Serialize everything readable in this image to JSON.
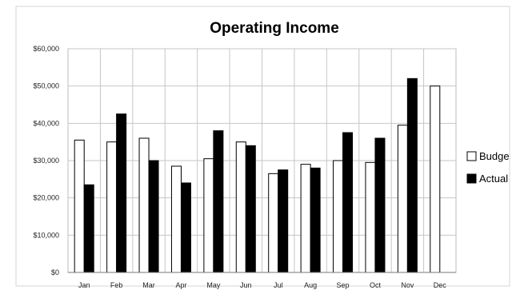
{
  "chart_data": {
    "type": "bar",
    "title": "Operating Income",
    "xlabel": "",
    "ylabel": "",
    "categories": [
      "Jan",
      "Feb",
      "Mar",
      "Apr",
      "May",
      "Jun",
      "Jul",
      "Aug",
      "Sep",
      "Oct",
      "Nov",
      "Dec"
    ],
    "series": [
      {
        "name": "Budget",
        "legend_text": "Budge",
        "color": "#ffffff",
        "values": [
          35500,
          35000,
          36000,
          28500,
          30500,
          35000,
          26500,
          29000,
          30000,
          29500,
          39500,
          50000
        ]
      },
      {
        "name": "Actual",
        "legend_text": "Actual",
        "color": "#000000",
        "values": [
          23500,
          42500,
          30000,
          24000,
          38000,
          34000,
          27500,
          28000,
          37500,
          36000,
          52000,
          null
        ]
      }
    ],
    "ylim": [
      0,
      60000
    ],
    "yticks": [
      0,
      10000,
      20000,
      30000,
      40000,
      50000,
      60000
    ],
    "ytick_labels": [
      "$0",
      "$10,000",
      "$20,000",
      "$30,000",
      "$40,000",
      "$50,000",
      "$60,000"
    ],
    "grid": true,
    "legend_position": "right"
  }
}
